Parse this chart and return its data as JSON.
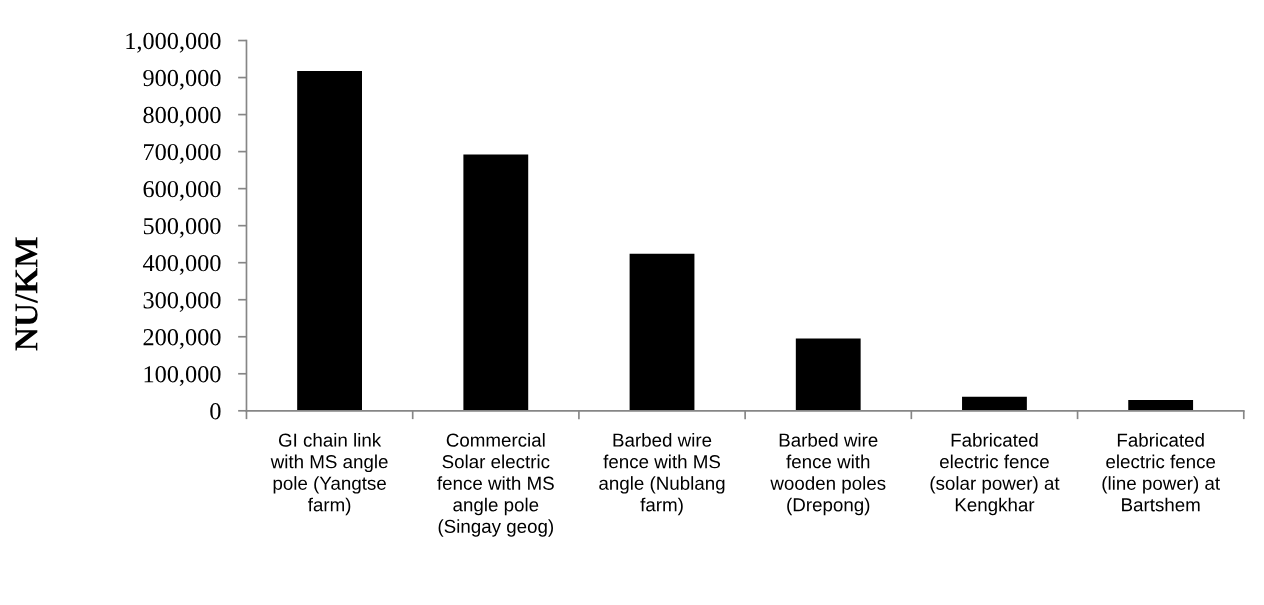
{
  "chart_data": {
    "type": "bar",
    "ylabel": "NU/KM",
    "categories": [
      "GI chain link\nwith MS angle\npole (Yangtse\nfarm)",
      "Commercial\nSolar electric\nfence with MS\nangle pole\n(Singay geog)",
      "Barbed wire\nfence with MS\nangle (Nublang\nfarm)",
      "Barbed wire\nfence with\nwooden poles\n(Drepong)",
      "Fabricated\nelectric fence\n(solar power) at\nKengkhar",
      "Fabricated\nelectric fence\n(line power) at\nBartshem"
    ],
    "values": [
      918000,
      692000,
      424000,
      195000,
      38000,
      29000
    ],
    "color": "#000000",
    "ylim": [
      0,
      1000000
    ],
    "yticks": [
      0,
      {
        "value": 100000,
        "label": "100,000"
      },
      {
        "value": 200000,
        "label": "200,000"
      },
      {
        "value": 300000,
        "label": "300,000"
      },
      {
        "value": 400000,
        "label": "400,000"
      },
      {
        "value": 500000,
        "label": "500,000"
      },
      {
        "value": 600000,
        "label": "600,000"
      },
      {
        "value": 700000,
        "label": "700,000"
      },
      {
        "value": 800000,
        "label": "800,000"
      },
      {
        "value": 900000,
        "label": "900,000"
      },
      {
        "value": 1000000,
        "label": "1,000,000"
      }
    ],
    "grid": false,
    "legend": false
  }
}
